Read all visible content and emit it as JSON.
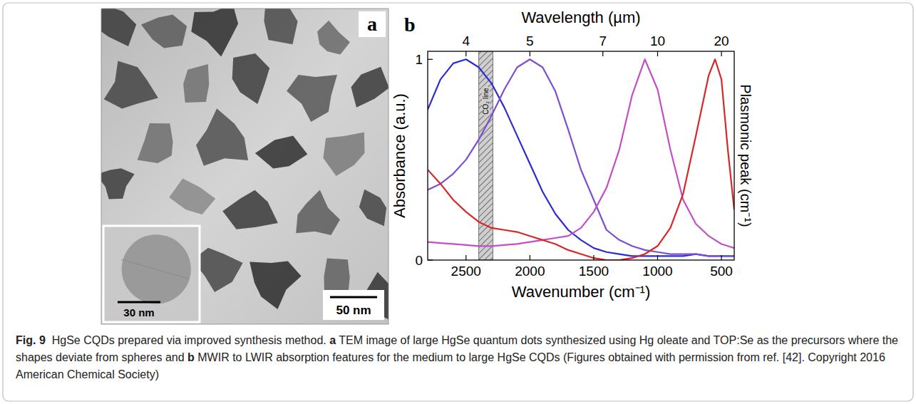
{
  "tem_panel": {
    "letter": "a",
    "scale_bar": "50 nm",
    "inset_scale_bar": "30 nm"
  },
  "chart_data": {
    "type": "line",
    "letter": "b",
    "x_label": "Wavenumber (cm⁻¹)",
    "x2_label": "Wavelength (µm)",
    "y_label": "Absorbance (a.u.)",
    "y2_label": "Plasmonic peak (cm⁻¹)",
    "x": [
      2800,
      2700,
      2600,
      2500,
      2400,
      2300,
      2200,
      2100,
      2000,
      1900,
      1800,
      1700,
      1600,
      1500,
      1400,
      1300,
      1200,
      1100,
      1000,
      900,
      800,
      700,
      600,
      550,
      500,
      450,
      400
    ],
    "xlim": [
      2800,
      400
    ],
    "xticks": [
      2500,
      2000,
      1500,
      1000,
      500
    ],
    "x2lim": [
      3.5714,
      25
    ],
    "x2ticks": [
      4,
      5,
      7,
      10,
      20
    ],
    "ylim": [
      0,
      1.04
    ],
    "yticks": [
      0,
      1
    ],
    "grid": false,
    "series": [
      {
        "color": "#2b2bd6",
        "values": [
          0.75,
          0.9,
          0.98,
          1.0,
          0.96,
          0.88,
          0.76,
          0.62,
          0.48,
          0.34,
          0.23,
          0.15,
          0.1,
          0.06,
          0.04,
          0.03,
          0.02,
          0.02,
          0.02,
          0.02,
          0.02,
          0.03,
          0.02,
          0.02,
          0.02,
          0.02,
          0.02
        ]
      },
      {
        "color": "#7b4fd0",
        "values": [
          0.35,
          0.38,
          0.43,
          0.5,
          0.6,
          0.72,
          0.85,
          0.96,
          1.0,
          0.96,
          0.84,
          0.65,
          0.45,
          0.3,
          0.15,
          0.1,
          0.07,
          0.05,
          0.04,
          0.03,
          0.03,
          0.03,
          0.02,
          0.02,
          0.02,
          0.02,
          0.02
        ]
      },
      {
        "color": "#c24fc4",
        "values": [
          0.09,
          0.085,
          0.08,
          0.075,
          0.07,
          0.07,
          0.075,
          0.08,
          0.09,
          0.1,
          0.11,
          0.12,
          0.16,
          0.24,
          0.36,
          0.55,
          0.82,
          1.0,
          0.85,
          0.55,
          0.3,
          0.18,
          0.12,
          0.1,
          0.08,
          0.07,
          0.06
        ]
      },
      {
        "color": "#d62828",
        "values": [
          0.45,
          0.38,
          0.3,
          0.24,
          0.19,
          0.16,
          0.15,
          0.14,
          0.12,
          0.1,
          0.08,
          0.05,
          0.03,
          0.01,
          0.0,
          0.0,
          0.01,
          0.03,
          0.07,
          0.16,
          0.33,
          0.62,
          0.92,
          1.0,
          0.9,
          0.55,
          0.25
        ]
      }
    ],
    "bands": [
      {
        "label": "CO₂ line",
        "range": [
          2400,
          2290
        ]
      }
    ]
  },
  "caption": [
    {
      "text": "Fig. 9",
      "bold": true
    },
    {
      "text": "  HgSe CQDs prepared via improved synthesis method. ",
      "bold": false
    },
    {
      "text": "a",
      "bold": true
    },
    {
      "text": " TEM image of large HgSe quantum dots synthesized using Hg oleate and TOP:Se as the precursors where the shapes deviate from spheres and ",
      "bold": false
    },
    {
      "text": "b",
      "bold": true
    },
    {
      "text": " MWIR to LWIR absorption features for the medium to large HgSe CQDs (Figures obtained with permission from ref. [42]. Copyright 2016 American Chemical Society)",
      "bold": false
    }
  ]
}
